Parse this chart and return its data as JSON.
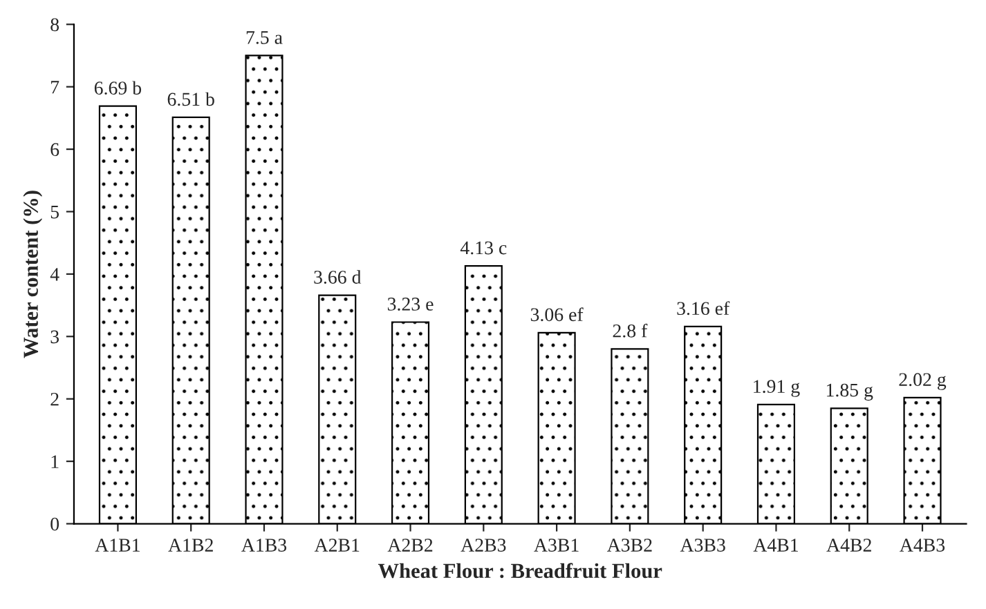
{
  "chart_data": {
    "type": "bar",
    "xlabel": "Wheat Flour : Breadfruit Flour",
    "ylabel": "Water content (%)",
    "categories": [
      "A1B1",
      "A1B2",
      "A1B3",
      "A2B1",
      "A2B2",
      "A2B3",
      "A3B1",
      "A3B2",
      "A3B3",
      "A4B1",
      "A4B2",
      "A4B3"
    ],
    "values": [
      6.69,
      6.51,
      7.5,
      3.66,
      3.23,
      4.13,
      3.06,
      2.8,
      3.16,
      1.91,
      1.85,
      2.02
    ],
    "value_labels": [
      "6.69 b",
      "6.51 b",
      "7.5 a",
      "3.66 d",
      "3.23 e",
      "4.13 c",
      "3.06 ef",
      "2.8 f",
      "3.16 ef",
      "1.91 g",
      "1.85 g",
      "2.02 g"
    ],
    "color": "#000000",
    "ylim": [
      0,
      8
    ],
    "yticks": [
      0,
      1,
      2,
      3,
      4,
      5,
      6,
      7,
      8
    ],
    "grid": false,
    "legend": false
  }
}
